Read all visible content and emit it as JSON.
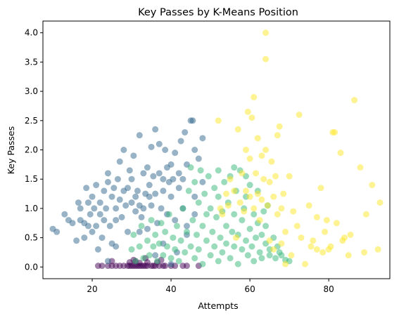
{
  "chart_data": {
    "type": "scatter",
    "title": "Key Passes by K-Means Position",
    "xlabel": "Attempts",
    "ylabel": "Key Passes",
    "xlim": [
      7.5,
      95.5
    ],
    "ylim": [
      -0.2,
      4.2
    ],
    "xticks": [
      20,
      40,
      60,
      80
    ],
    "yticks": [
      0.0,
      0.5,
      1.0,
      1.5,
      2.0,
      2.5,
      3.0,
      3.5,
      4.0
    ],
    "grid": false,
    "point_alpha": 0.5,
    "series": [
      {
        "color": "#440154",
        "points": [
          [
            21.5,
            0.02
          ],
          [
            22.5,
            0.02
          ],
          [
            24,
            0.02
          ],
          [
            25,
            0.02
          ],
          [
            26,
            0.02
          ],
          [
            27,
            0.02
          ],
          [
            28,
            0.02
          ],
          [
            29,
            0.02
          ],
          [
            29.5,
            0.02
          ],
          [
            30,
            0.02
          ],
          [
            30.5,
            0.02
          ],
          [
            31,
            0.02
          ],
          [
            31.5,
            0.02
          ],
          [
            32,
            0.02
          ],
          [
            32.5,
            0.02
          ],
          [
            33,
            0.02
          ],
          [
            33.5,
            0.02
          ],
          [
            34,
            0.02
          ],
          [
            35,
            0.02
          ],
          [
            35.5,
            0.02
          ],
          [
            36,
            0.02
          ],
          [
            37,
            0.02
          ],
          [
            38,
            0.02
          ],
          [
            38.5,
            0.02
          ],
          [
            40,
            0.02
          ],
          [
            41,
            0.02
          ],
          [
            43,
            0.02
          ],
          [
            44,
            0.02
          ],
          [
            47,
            0.02
          ],
          [
            29.5,
            0.08
          ],
          [
            31,
            0.1
          ],
          [
            32,
            0.07
          ],
          [
            34,
            0.08
          ],
          [
            36.5,
            0.08
          ],
          [
            30.5,
            0.12
          ],
          [
            33.5,
            0.15
          ],
          [
            25,
            0.1
          ],
          [
            37.5,
            0.12
          ]
        ]
      },
      {
        "color": "#31688e",
        "points": [
          [
            10,
            0.65
          ],
          [
            11,
            0.6
          ],
          [
            13,
            0.9
          ],
          [
            14,
            0.8
          ],
          [
            15,
            0.75
          ],
          [
            16,
            0.45
          ],
          [
            16.5,
            1.1
          ],
          [
            17,
            0.8
          ],
          [
            17,
            1.0
          ],
          [
            18,
            0.75
          ],
          [
            18,
            0.5
          ],
          [
            18.5,
            1.35
          ],
          [
            19,
            0.7
          ],
          [
            19,
            1.1
          ],
          [
            19.5,
            0.9
          ],
          [
            20,
            0.6
          ],
          [
            20,
            1.2
          ],
          [
            20.5,
            1.0
          ],
          [
            21,
            0.7
          ],
          [
            21,
            1.4
          ],
          [
            21.5,
            0.3
          ],
          [
            22,
            0.9
          ],
          [
            22,
            1.1
          ],
          [
            22.5,
            0.5
          ],
          [
            23,
            1.3
          ],
          [
            23,
            0.8
          ],
          [
            23.5,
            1.0
          ],
          [
            24,
            1.45
          ],
          [
            24,
            1.6
          ],
          [
            24.5,
            0.7
          ],
          [
            25,
            1.2
          ],
          [
            25,
            0.4
          ],
          [
            25.5,
            1.35
          ],
          [
            26,
            1.0
          ],
          [
            26,
            0.8
          ],
          [
            26.5,
            1.5
          ],
          [
            27,
            1.15
          ],
          [
            27,
            1.8
          ],
          [
            27.5,
            0.85
          ],
          [
            28,
            1.3
          ],
          [
            28,
            2.0
          ],
          [
            28.5,
            1.05
          ],
          [
            29,
            1.35
          ],
          [
            29,
            0.6
          ],
          [
            29.5,
            1.65
          ],
          [
            30,
            1.5
          ],
          [
            30,
            1.1
          ],
          [
            30.5,
            1.9
          ],
          [
            31,
            1.2
          ],
          [
            31,
            0.95
          ],
          [
            31.5,
            1.3
          ],
          [
            32,
            2.25
          ],
          [
            32,
            1.05
          ],
          [
            32.5,
            0.85
          ],
          [
            33,
            1.6
          ],
          [
            33,
            1.0
          ],
          [
            33.5,
            1.25
          ],
          [
            34,
            1.7
          ],
          [
            34,
            0.65
          ],
          [
            34.5,
            1.4
          ],
          [
            35,
            1.05
          ],
          [
            35,
            2.05
          ],
          [
            35.5,
            1.55
          ],
          [
            36,
            1.25
          ],
          [
            36,
            2.35
          ],
          [
            36.5,
            0.75
          ],
          [
            37,
            1.6
          ],
          [
            37,
            2.1
          ],
          [
            37.5,
            1.0
          ],
          [
            38,
            1.5
          ],
          [
            38,
            1.3
          ],
          [
            38.5,
            2.0
          ],
          [
            39,
            1.7
          ],
          [
            39,
            0.9
          ],
          [
            39.5,
            1.45
          ],
          [
            40,
            1.75
          ],
          [
            40,
            1.2
          ],
          [
            40.5,
            1.5
          ],
          [
            41,
            1.95
          ],
          [
            41,
            0.8
          ],
          [
            42,
            1.6
          ],
          [
            42,
            1.35
          ],
          [
            42.5,
            2.15
          ],
          [
            43,
            1.5
          ],
          [
            43,
            1.0
          ],
          [
            43.5,
            2.3
          ],
          [
            44,
            1.75
          ],
          [
            44,
            0.7
          ],
          [
            45,
            2.5
          ],
          [
            45.5,
            2.5
          ],
          [
            46,
            2.0
          ],
          [
            46,
            1.2
          ],
          [
            47,
            1.85
          ],
          [
            48,
            2.2
          ],
          [
            48,
            1.45
          ],
          [
            36,
            0.2
          ],
          [
            38,
            0.4
          ],
          [
            40,
            0.05
          ],
          [
            44,
            0.55
          ],
          [
            41.5,
            0.25
          ],
          [
            46,
            0.9
          ],
          [
            26,
            0.35
          ],
          [
            24,
            0.1
          ],
          [
            34.5,
            1.2
          ],
          [
            32,
            0.6
          ]
        ]
      },
      {
        "color": "#35b779",
        "points": [
          [
            30,
            0.3
          ],
          [
            30.5,
            0.55
          ],
          [
            31,
            0.1
          ],
          [
            32,
            0.35
          ],
          [
            32.5,
            0.7
          ],
          [
            33,
            0.15
          ],
          [
            34,
            0.45
          ],
          [
            34.5,
            0.2
          ],
          [
            35,
            0.8
          ],
          [
            35.5,
            0.35
          ],
          [
            36,
            0.55
          ],
          [
            36.5,
            0.1
          ],
          [
            37,
            0.4
          ],
          [
            37.5,
            0.75
          ],
          [
            38,
            0.2
          ],
          [
            38.5,
            0.6
          ],
          [
            39,
            0.35
          ],
          [
            39.5,
            0.9
          ],
          [
            40,
            0.15
          ],
          [
            40.5,
            0.5
          ],
          [
            41,
            0.3
          ],
          [
            41.5,
            0.7
          ],
          [
            42,
            0.1
          ],
          [
            42.5,
            0.45
          ],
          [
            43,
            1.0
          ],
          [
            43.5,
            0.25
          ],
          [
            44,
            0.6
          ],
          [
            44.5,
            1.3
          ],
          [
            45,
            0.35
          ],
          [
            45,
            1.7
          ],
          [
            45.5,
            0.8
          ],
          [
            46,
            0.15
          ],
          [
            46,
            1.45
          ],
          [
            46.5,
            0.55
          ],
          [
            47,
            1.1
          ],
          [
            47,
            0.3
          ],
          [
            47.5,
            1.65
          ],
          [
            48,
            0.7
          ],
          [
            48,
            0.05
          ],
          [
            48.5,
            1.25
          ],
          [
            49,
            0.45
          ],
          [
            49,
            0.9
          ],
          [
            49.5,
            1.55
          ],
          [
            50,
            0.2
          ],
          [
            50,
            1.0
          ],
          [
            50.5,
            0.6
          ],
          [
            51,
            1.35
          ],
          [
            51,
            0.35
          ],
          [
            51.5,
            0.85
          ],
          [
            52,
            0.1
          ],
          [
            52,
            1.2
          ],
          [
            52.5,
            0.5
          ],
          [
            53,
            0.95
          ],
          [
            53,
            0.25
          ],
          [
            53.5,
            1.45
          ],
          [
            54,
            0.7
          ],
          [
            54,
            0.4
          ],
          [
            54.5,
            1.1
          ],
          [
            55,
            0.15
          ],
          [
            55,
            1.55
          ],
          [
            55.5,
            0.6
          ],
          [
            56,
            0.35
          ],
          [
            56,
            0.9
          ],
          [
            56.5,
            1.3
          ],
          [
            57,
            0.05
          ],
          [
            57,
            0.55
          ],
          [
            57.5,
            1.65
          ],
          [
            58,
            0.3
          ],
          [
            58,
            0.8
          ],
          [
            58.5,
            1.0
          ],
          [
            59,
            0.45
          ],
          [
            59,
            1.2
          ],
          [
            59.5,
            0.2
          ],
          [
            60,
            0.65
          ],
          [
            60,
            1.4
          ],
          [
            60.5,
            0.35
          ],
          [
            61,
            0.9
          ],
          [
            61,
            0.1
          ],
          [
            61.5,
            0.5
          ],
          [
            62,
            0.75
          ],
          [
            62,
            1.3
          ],
          [
            62.5,
            0.25
          ],
          [
            63,
            0.55
          ],
          [
            63,
            0.15
          ],
          [
            63.5,
            0.95
          ],
          [
            64,
            0.4
          ],
          [
            64,
            0.7
          ],
          [
            64.5,
            1.05
          ],
          [
            65,
            0.3
          ],
          [
            65,
            0.2
          ],
          [
            66,
            0.5
          ],
          [
            66.5,
            0.15
          ],
          [
            67,
            0.35
          ],
          [
            67.5,
            0.25
          ],
          [
            68,
            0.2
          ],
          [
            69,
            0.12
          ],
          [
            70,
            0.1
          ],
          [
            56,
            1.7
          ],
          [
            52,
            1.65
          ],
          [
            59,
            1.55
          ]
        ]
      },
      {
        "color": "#fde725",
        "points": [
          [
            52,
            2.5
          ],
          [
            52.5,
            1.0
          ],
          [
            53,
            0.9
          ],
          [
            54,
            1.25
          ],
          [
            54.5,
            1.05
          ],
          [
            55,
            1.5
          ],
          [
            56,
            1.3
          ],
          [
            56.5,
            0.5
          ],
          [
            57,
            2.35
          ],
          [
            57.5,
            1.1
          ],
          [
            58,
            1.6
          ],
          [
            58.5,
            0.95
          ],
          [
            59,
            2.0
          ],
          [
            59,
            1.3
          ],
          [
            59.5,
            2.65
          ],
          [
            60,
            1.85
          ],
          [
            60,
            1.2
          ],
          [
            60.5,
            2.55
          ],
          [
            61,
            1.0
          ],
          [
            61,
            2.9
          ],
          [
            61.5,
            1.6
          ],
          [
            62,
            2.2
          ],
          [
            62,
            1.25
          ],
          [
            62.5,
            0.8
          ],
          [
            63,
            1.9
          ],
          [
            63,
            1.15
          ],
          [
            63.5,
            1.5
          ],
          [
            64,
            4.0
          ],
          [
            64,
            3.55
          ],
          [
            64,
            2.0
          ],
          [
            64.5,
            1.05
          ],
          [
            65,
            1.45
          ],
          [
            65,
            0.45
          ],
          [
            65.5,
            1.8
          ],
          [
            66,
            1.2
          ],
          [
            66,
            0.3
          ],
          [
            66.5,
            1.55
          ],
          [
            67,
            2.25
          ],
          [
            67,
            0.9
          ],
          [
            67.5,
            2.4
          ],
          [
            68,
            1.0
          ],
          [
            68,
            0.4
          ],
          [
            68.5,
            1.25
          ],
          [
            69,
            0.6
          ],
          [
            69,
            0.05
          ],
          [
            70,
            1.55
          ],
          [
            71,
            0.95
          ],
          [
            72,
            0.7
          ],
          [
            72.5,
            2.6
          ],
          [
            74,
            0.05
          ],
          [
            75,
            1.05
          ],
          [
            75.5,
            0.35
          ],
          [
            76,
            0.45
          ],
          [
            77,
            0.85
          ],
          [
            78,
            1.35
          ],
          [
            78.5,
            0.25
          ],
          [
            79,
            0.6
          ],
          [
            79.5,
            0.8
          ],
          [
            80,
            0.3
          ],
          [
            80.5,
            0.35
          ],
          [
            81,
            2.3
          ],
          [
            81.5,
            2.3
          ],
          [
            82,
            0.75
          ],
          [
            83,
            1.95
          ],
          [
            84,
            0.5
          ],
          [
            85,
            0.2
          ],
          [
            85.5,
            0.55
          ],
          [
            86.5,
            2.85
          ],
          [
            88,
            1.7
          ],
          [
            89,
            0.25
          ],
          [
            89.5,
            0.9
          ],
          [
            91,
            1.4
          ],
          [
            92.5,
            0.3
          ],
          [
            93,
            1.1
          ],
          [
            77,
            0.3
          ],
          [
            83.5,
            0.45
          ],
          [
            70.5,
            0.2
          ],
          [
            73,
            0.5
          ]
        ]
      }
    ]
  }
}
